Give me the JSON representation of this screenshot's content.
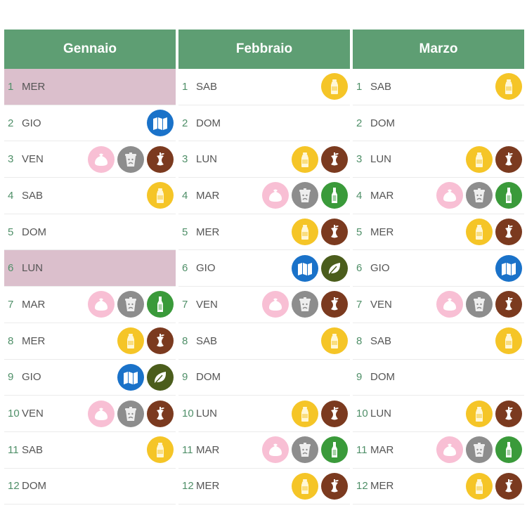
{
  "months": [
    {
      "name": "Gennaio",
      "days": [
        {
          "num": "1",
          "name": "MER",
          "holiday": true,
          "icons": []
        },
        {
          "num": "2",
          "name": "GIO",
          "icons": [
            "paper"
          ]
        },
        {
          "num": "3",
          "name": "VEN",
          "icons": [
            "residual",
            "unsorted",
            "organic"
          ]
        },
        {
          "num": "4",
          "name": "SAB",
          "icons": [
            "plastic"
          ]
        },
        {
          "num": "5",
          "name": "DOM",
          "icons": []
        },
        {
          "num": "6",
          "name": "LUN",
          "holiday": true,
          "icons": []
        },
        {
          "num": "7",
          "name": "MAR",
          "icons": [
            "residual",
            "unsorted",
            "glass"
          ]
        },
        {
          "num": "8",
          "name": "MER",
          "icons": [
            "plastic",
            "organic"
          ]
        },
        {
          "num": "9",
          "name": "GIO",
          "icons": [
            "paper",
            "green"
          ]
        },
        {
          "num": "10",
          "name": "VEN",
          "icons": [
            "residual",
            "unsorted",
            "organic"
          ]
        },
        {
          "num": "11",
          "name": "SAB",
          "icons": [
            "plastic"
          ]
        },
        {
          "num": "12",
          "name": "DOM",
          "icons": []
        }
      ]
    },
    {
      "name": "Febbraio",
      "days": [
        {
          "num": "1",
          "name": "SAB",
          "icons": [
            "plastic"
          ]
        },
        {
          "num": "2",
          "name": "DOM",
          "icons": []
        },
        {
          "num": "3",
          "name": "LUN",
          "icons": [
            "plastic",
            "organic"
          ]
        },
        {
          "num": "4",
          "name": "MAR",
          "icons": [
            "residual",
            "unsorted",
            "glass"
          ]
        },
        {
          "num": "5",
          "name": "MER",
          "icons": [
            "plastic",
            "organic"
          ]
        },
        {
          "num": "6",
          "name": "GIO",
          "icons": [
            "paper",
            "green"
          ]
        },
        {
          "num": "7",
          "name": "VEN",
          "icons": [
            "residual",
            "unsorted",
            "organic"
          ]
        },
        {
          "num": "8",
          "name": "SAB",
          "icons": [
            "plastic"
          ]
        },
        {
          "num": "9",
          "name": "DOM",
          "icons": []
        },
        {
          "num": "10",
          "name": "LUN",
          "icons": [
            "plastic",
            "organic"
          ]
        },
        {
          "num": "11",
          "name": "MAR",
          "icons": [
            "residual",
            "unsorted",
            "glass"
          ]
        },
        {
          "num": "12",
          "name": "MER",
          "icons": [
            "plastic",
            "organic"
          ]
        }
      ]
    },
    {
      "name": "Marzo",
      "days": [
        {
          "num": "1",
          "name": "SAB",
          "icons": [
            "plastic"
          ]
        },
        {
          "num": "2",
          "name": "DOM",
          "icons": []
        },
        {
          "num": "3",
          "name": "LUN",
          "icons": [
            "plastic",
            "organic"
          ]
        },
        {
          "num": "4",
          "name": "MAR",
          "icons": [
            "residual",
            "unsorted",
            "glass"
          ]
        },
        {
          "num": "5",
          "name": "MER",
          "icons": [
            "plastic",
            "organic"
          ]
        },
        {
          "num": "6",
          "name": "GIO",
          "icons": [
            "paper"
          ]
        },
        {
          "num": "7",
          "name": "VEN",
          "icons": [
            "residual",
            "unsorted",
            "organic"
          ]
        },
        {
          "num": "8",
          "name": "SAB",
          "icons": [
            "plastic"
          ]
        },
        {
          "num": "9",
          "name": "DOM",
          "icons": []
        },
        {
          "num": "10",
          "name": "LUN",
          "icons": [
            "plastic",
            "organic"
          ]
        },
        {
          "num": "11",
          "name": "MAR",
          "icons": [
            "residual",
            "unsorted",
            "glass"
          ]
        },
        {
          "num": "12",
          "name": "MER",
          "icons": [
            "plastic",
            "organic"
          ]
        }
      ]
    }
  ],
  "icon_types": {
    "plastic": {
      "icon": "bottle-plastic-icon",
      "color": "#f5c527"
    },
    "organic": {
      "icon": "apple-core-icon",
      "color": "#7b3a1f"
    },
    "residual": {
      "icon": "trash-bag-icon",
      "color": "#f8bfd4"
    },
    "unsorted": {
      "icon": "sad-bin-icon",
      "color": "#8d8d8d"
    },
    "glass": {
      "icon": "glass-bottle-icon",
      "color": "#3a9a3a"
    },
    "paper": {
      "icon": "newspaper-icon",
      "color": "#1a72c9"
    },
    "green": {
      "icon": "leaf-icon",
      "color": "#4b5d1c"
    }
  },
  "colors": {
    "header": "#5e9e73",
    "holiday": "#dbbfcc",
    "day_number": "#4f8f68"
  }
}
